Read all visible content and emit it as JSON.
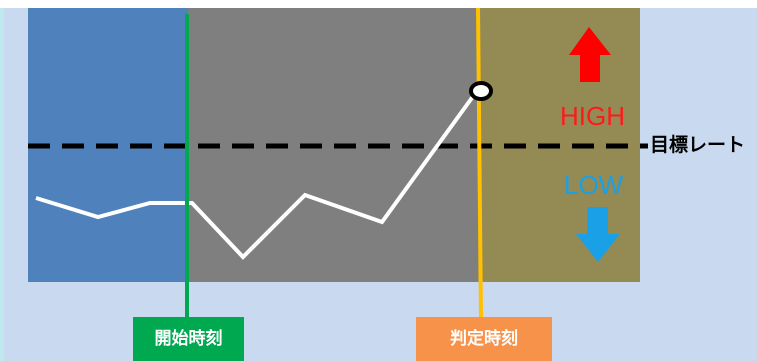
{
  "labels": {
    "start_time": "開始時刻",
    "judgment_time": "判定時刻",
    "target_rate": "目標レート",
    "high": "HIGH",
    "low": "LOW"
  },
  "colors": {
    "before_zone": "#4f81bd",
    "active_zone": "#7f7f7f",
    "after_zone": "#948a54",
    "start_line": "#00a850",
    "judgment_line": "#ffc000",
    "high": "#ff0000",
    "low": "#1aa0e6"
  },
  "icons": {
    "high": "up-arrow-icon",
    "low": "down-arrow-icon"
  }
}
